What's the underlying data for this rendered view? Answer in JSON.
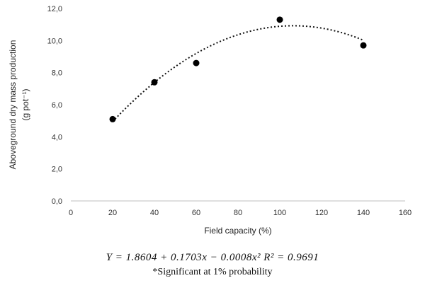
{
  "chart_data": {
    "type": "scatter",
    "xlabel": "Field capacity (%)",
    "ylabel_line1": "Aboveground dry mass production",
    "ylabel_line2": "(g pot⁻¹)",
    "xlim": [
      0,
      160
    ],
    "ylim": [
      0,
      12
    ],
    "x_ticks": [
      "0",
      "20",
      "40",
      "60",
      "80",
      "100",
      "120",
      "140",
      "160"
    ],
    "y_ticks": [
      "0,0",
      "2,0",
      "4,0",
      "6,0",
      "8,0",
      "10,0",
      "12,0"
    ],
    "grid": false,
    "points": [
      {
        "x": 20,
        "y": 5.1
      },
      {
        "x": 40,
        "y": 7.4
      },
      {
        "x": 60,
        "y": 8.6
      },
      {
        "x": 100,
        "y": 11.3
      },
      {
        "x": 140,
        "y": 9.7
      }
    ],
    "trendline": {
      "style": "dotted",
      "coefficients": [
        1.8604,
        0.1703,
        -0.0008
      ],
      "x_range": [
        20,
        140
      ]
    },
    "equation": "Y = 1.8604 + 0.1703x − 0.0008x²     R² = 0.9691",
    "note": "*Significant at 1% probability"
  }
}
